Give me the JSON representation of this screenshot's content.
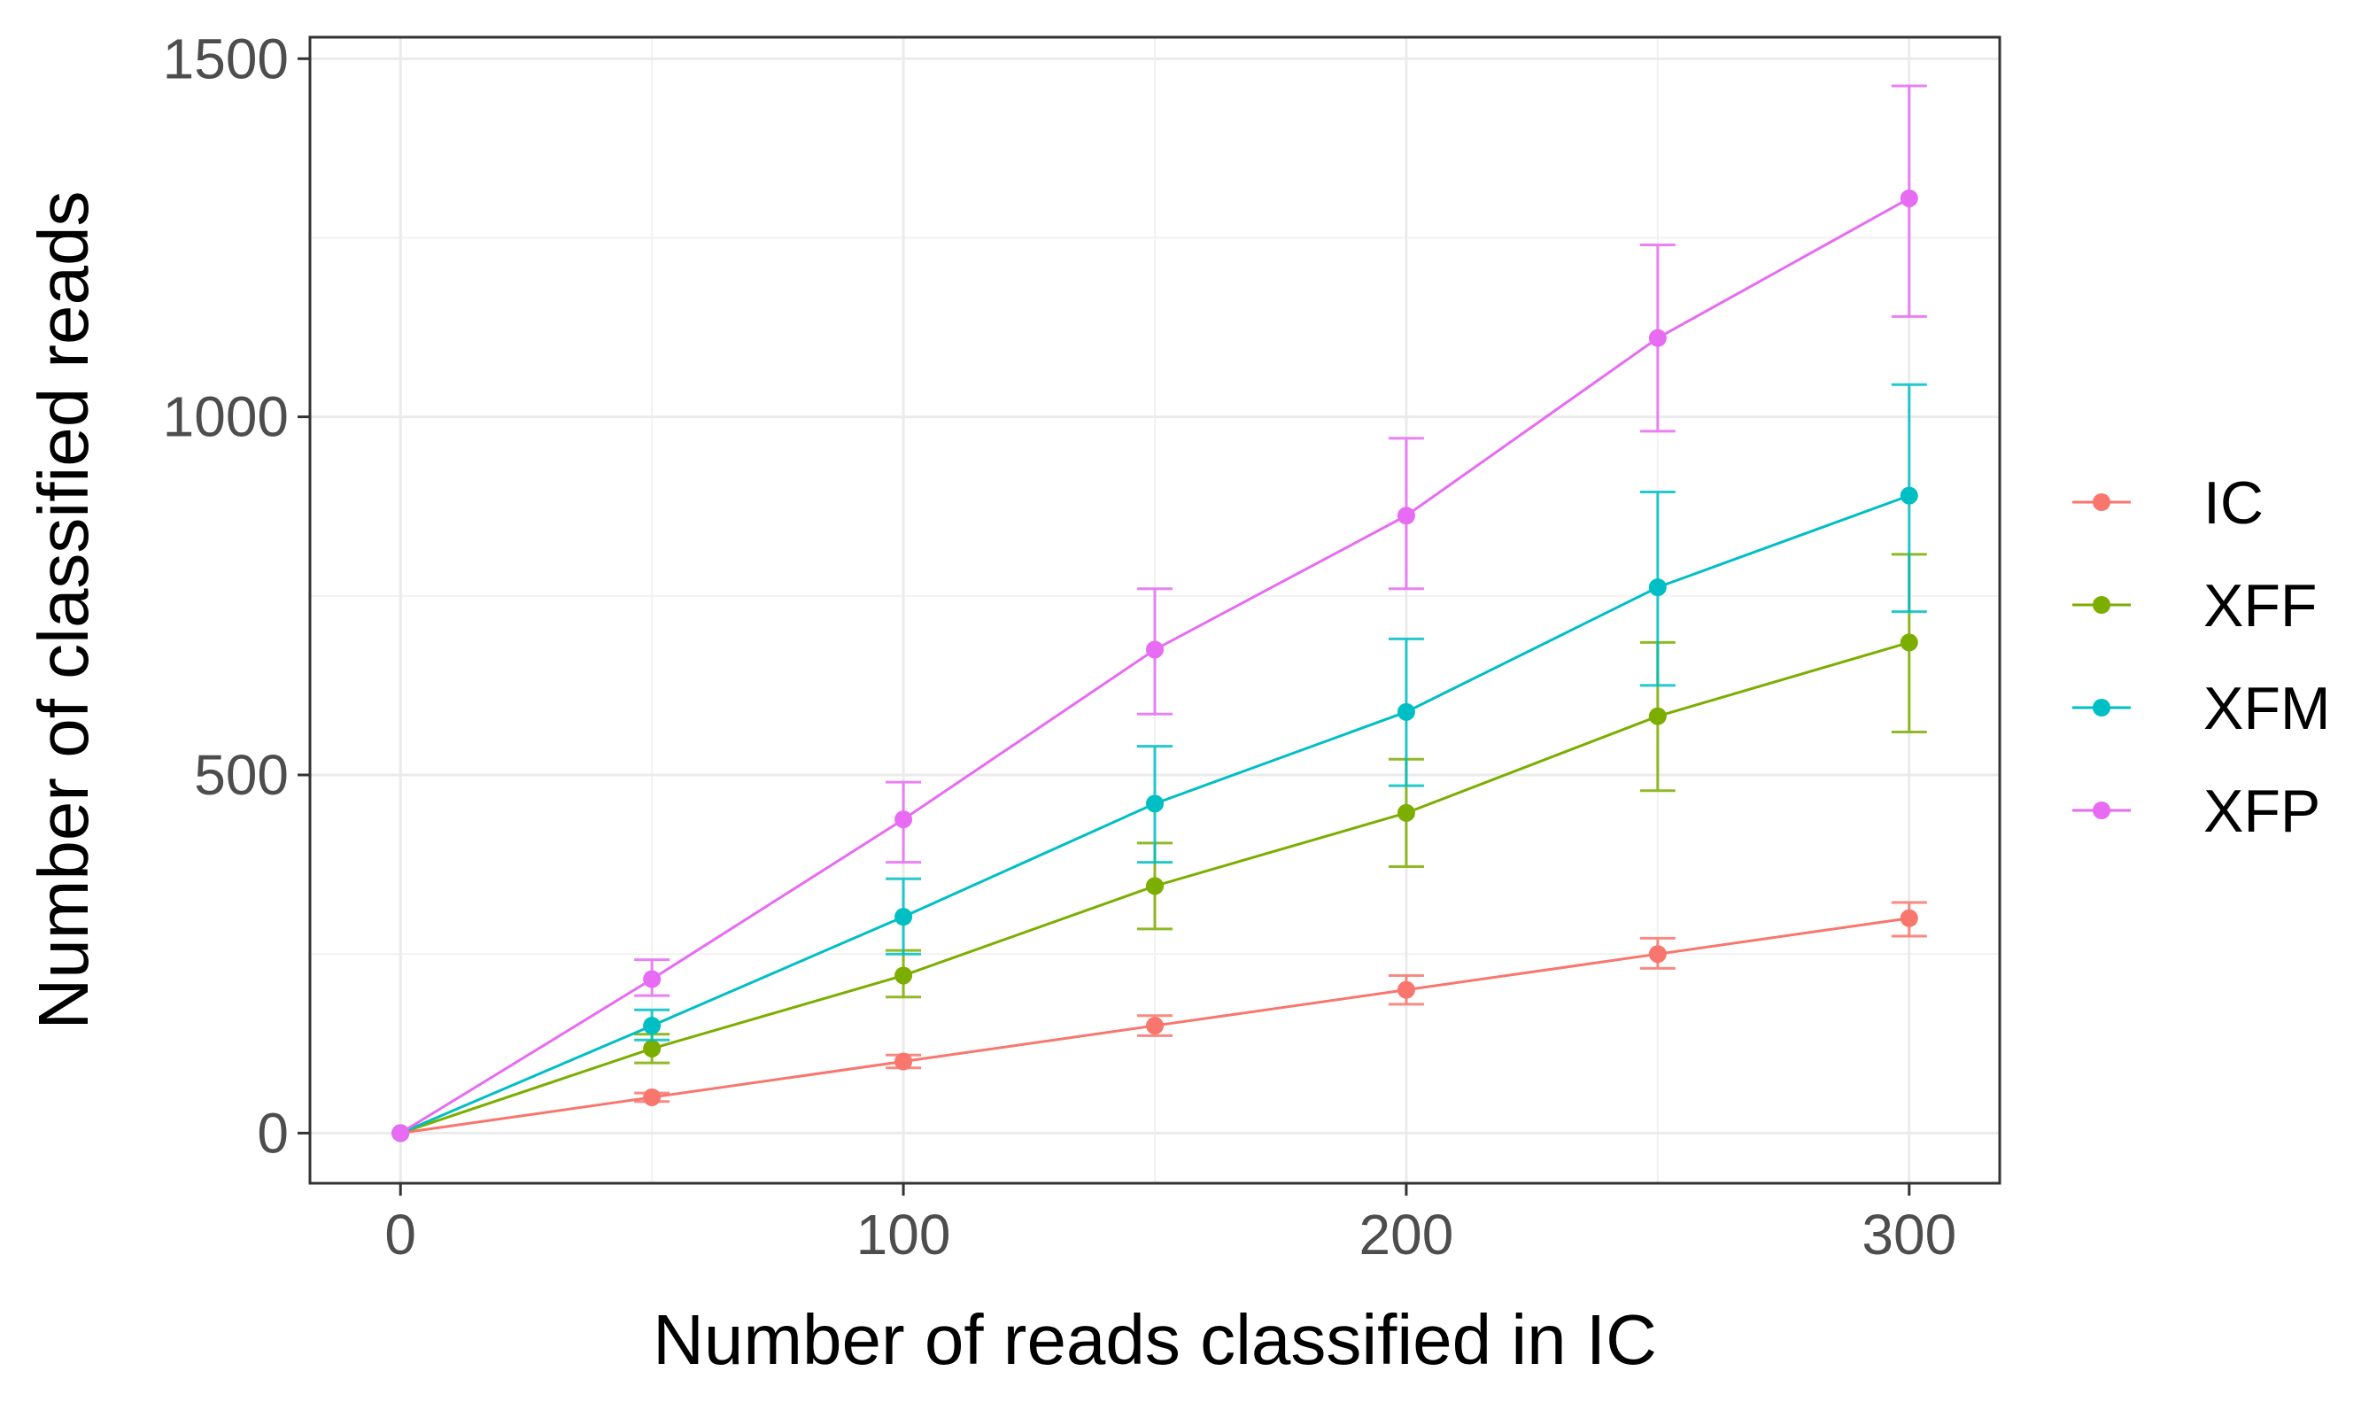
{
  "chart_data": {
    "type": "line",
    "title": "",
    "xlabel": "Number of reads classified in IC",
    "ylabel": "Number of classified reads",
    "xlim": [
      -18,
      318
    ],
    "ylim": [
      -70,
      1530
    ],
    "xticks": [
      0,
      100,
      200,
      300
    ],
    "yticks": [
      0,
      500,
      1000,
      1500
    ],
    "xtick_labels": [
      "0",
      "100",
      "200",
      "300"
    ],
    "ytick_labels": [
      "0",
      "500",
      "1000",
      "1500"
    ],
    "x_minor": [
      50,
      150,
      250
    ],
    "y_minor": [
      250,
      750,
      1250
    ],
    "grid": true,
    "legend_position": "right",
    "x": [
      0,
      50,
      100,
      150,
      200,
      250,
      300
    ],
    "series": [
      {
        "name": "IC",
        "color": "#F8766D",
        "values": [
          0,
          50,
          100,
          150,
          200,
          250,
          300
        ],
        "error_low": [
          0,
          44,
          91,
          136,
          180,
          230,
          275
        ],
        "error_high": [
          0,
          56,
          109,
          164,
          220,
          272,
          322
        ]
      },
      {
        "name": "XFF",
        "color": "#7CAE00",
        "values": [
          0,
          118,
          220,
          345,
          447,
          582,
          685
        ],
        "error_low": [
          0,
          98,
          190,
          285,
          372,
          478,
          560
        ],
        "error_high": [
          0,
          138,
          255,
          405,
          522,
          685,
          808
        ]
      },
      {
        "name": "XFM",
        "color": "#00BFC4",
        "values": [
          0,
          150,
          302,
          460,
          588,
          762,
          890
        ],
        "error_low": [
          0,
          130,
          250,
          378,
          485,
          625,
          728
        ],
        "error_high": [
          0,
          172,
          355,
          540,
          690,
          895,
          1045
        ]
      },
      {
        "name": "XFP",
        "color": "#E76BF3",
        "values": [
          0,
          215,
          438,
          675,
          862,
          1110,
          1305
        ],
        "error_low": [
          0,
          192,
          378,
          585,
          760,
          980,
          1140
        ],
        "error_high": [
          0,
          242,
          490,
          760,
          970,
          1240,
          1462
        ]
      }
    ]
  }
}
